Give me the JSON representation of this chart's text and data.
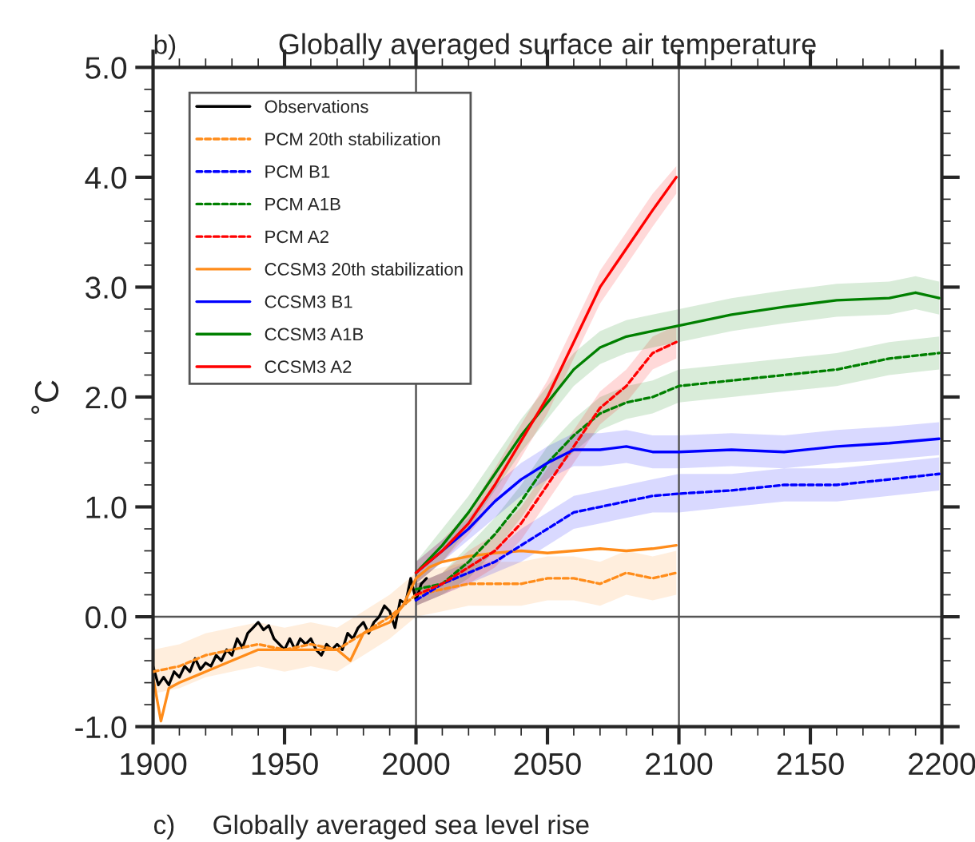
{
  "chart_data": {
    "type": "line",
    "title": "Globally averaged surface air temperature",
    "ylabel": "˚C",
    "annotations": [
      "b)",
      "c)     Globally averaged sea level rise"
    ],
    "xlim": [
      1900,
      2200
    ],
    "xticks": [
      1900,
      1950,
      2000,
      2050,
      2100,
      2150,
      2200
    ],
    "ylim": [
      -1.0,
      5.0
    ],
    "yticks": [
      {
        "value": -1.0,
        "label": "-1.0"
      },
      {
        "value": 0.0,
        "label": "0.0"
      },
      {
        "value": 1.0,
        "label": "1.0"
      },
      {
        "value": 2.0,
        "label": "2.0"
      },
      {
        "value": 3.0,
        "label": "3.0"
      },
      {
        "value": 4.0,
        "label": "4.0"
      },
      {
        "value": 5.0,
        "label": "5.0"
      }
    ],
    "grid": false,
    "legend": "top left",
    "ref_lines": [
      {
        "axis": "x",
        "value": 2000,
        "color": "#555555"
      },
      {
        "axis": "x",
        "value": 2100,
        "color": "#555555"
      },
      {
        "axis": "y",
        "value": 0,
        "color": "#555555"
      }
    ],
    "series": [
      {
        "name": "Observations",
        "color": "#000000",
        "line_style": "solid",
        "x": [
          1900,
          1902,
          1904,
          1906,
          1908,
          1910,
          1912,
          1914,
          1916,
          1918,
          1920,
          1922,
          1924,
          1926,
          1928,
          1930,
          1932,
          1934,
          1936,
          1938,
          1940,
          1942,
          1944,
          1946,
          1948,
          1950,
          1952,
          1954,
          1956,
          1958,
          1960,
          1962,
          1964,
          1966,
          1968,
          1970,
          1972,
          1974,
          1976,
          1978,
          1980,
          1982,
          1984,
          1986,
          1988,
          1990,
          1992,
          1994,
          1996,
          1998,
          2000,
          2002,
          2004
        ],
        "values": [
          -0.45,
          -0.62,
          -0.55,
          -0.62,
          -0.5,
          -0.55,
          -0.45,
          -0.5,
          -0.38,
          -0.48,
          -0.42,
          -0.45,
          -0.35,
          -0.4,
          -0.3,
          -0.35,
          -0.2,
          -0.28,
          -0.15,
          -0.1,
          -0.05,
          -0.12,
          -0.08,
          -0.2,
          -0.25,
          -0.3,
          -0.2,
          -0.3,
          -0.2,
          -0.25,
          -0.2,
          -0.3,
          -0.35,
          -0.25,
          -0.3,
          -0.25,
          -0.3,
          -0.15,
          -0.2,
          -0.1,
          -0.05,
          -0.15,
          -0.05,
          0.0,
          0.1,
          0.05,
          -0.1,
          0.15,
          0.12,
          0.35,
          0.15,
          0.3,
          0.35
        ]
      },
      {
        "name": "PCM 20th stabilization",
        "color": "#ff8c1a",
        "line_style": "dashed",
        "x": [
          1900,
          1910,
          1920,
          1930,
          1940,
          1950,
          1960,
          1970,
          1980,
          1990,
          2000,
          2010,
          2020,
          2030,
          2040,
          2050,
          2060,
          2070,
          2080,
          2090,
          2099
        ],
        "values": [
          -0.5,
          -0.45,
          -0.35,
          -0.3,
          -0.25,
          -0.3,
          -0.25,
          -0.3,
          -0.15,
          0.0,
          0.2,
          0.25,
          0.3,
          0.3,
          0.3,
          0.35,
          0.35,
          0.3,
          0.4,
          0.35,
          0.4
        ],
        "lower": [
          -0.7,
          -0.65,
          -0.55,
          -0.5,
          -0.45,
          -0.5,
          -0.45,
          -0.5,
          -0.35,
          -0.2,
          0.0,
          0.05,
          0.1,
          0.1,
          0.1,
          0.15,
          0.15,
          0.1,
          0.2,
          0.15,
          0.2
        ],
        "upper": [
          -0.3,
          -0.25,
          -0.15,
          -0.1,
          -0.05,
          -0.1,
          -0.05,
          -0.1,
          0.05,
          0.2,
          0.4,
          0.45,
          0.5,
          0.5,
          0.5,
          0.55,
          0.55,
          0.5,
          0.6,
          0.55,
          0.6
        ]
      },
      {
        "name": "PCM B1",
        "color": "#0000ff",
        "line_style": "dashed",
        "x": [
          2000,
          2010,
          2020,
          2030,
          2040,
          2050,
          2060,
          2070,
          2080,
          2090,
          2100,
          2120,
          2140,
          2160,
          2180,
          2199
        ],
        "values": [
          0.15,
          0.3,
          0.4,
          0.5,
          0.65,
          0.8,
          0.95,
          1.0,
          1.05,
          1.1,
          1.12,
          1.15,
          1.2,
          1.2,
          1.25,
          1.3
        ],
        "lower": [
          0.1,
          0.2,
          0.3,
          0.4,
          0.5,
          0.65,
          0.8,
          0.85,
          0.9,
          0.95,
          0.95,
          1.0,
          1.05,
          1.05,
          1.1,
          1.15
        ],
        "upper": [
          0.3,
          0.4,
          0.5,
          0.6,
          0.8,
          0.95,
          1.1,
          1.15,
          1.2,
          1.25,
          1.3,
          1.3,
          1.35,
          1.35,
          1.4,
          1.45
        ]
      },
      {
        "name": "PCM A1B",
        "color": "#008000",
        "line_style": "dashed",
        "x": [
          2000,
          2010,
          2020,
          2030,
          2040,
          2050,
          2060,
          2070,
          2080,
          2090,
          2100,
          2120,
          2140,
          2160,
          2180,
          2199
        ],
        "values": [
          0.25,
          0.3,
          0.5,
          0.75,
          1.05,
          1.4,
          1.65,
          1.85,
          1.95,
          2.0,
          2.1,
          2.15,
          2.2,
          2.25,
          2.35,
          2.4
        ],
        "lower": [
          0.1,
          0.2,
          0.35,
          0.6,
          0.9,
          1.25,
          1.5,
          1.7,
          1.8,
          1.85,
          1.95,
          2.0,
          2.05,
          2.1,
          2.2,
          2.25
        ],
        "upper": [
          0.3,
          0.4,
          0.65,
          0.9,
          1.2,
          1.55,
          1.8,
          2.0,
          2.1,
          2.15,
          2.25,
          2.3,
          2.35,
          2.4,
          2.5,
          2.55
        ]
      },
      {
        "name": "PCM A2",
        "color": "#ff0000",
        "line_style": "dashed",
        "x": [
          2000,
          2010,
          2020,
          2030,
          2040,
          2050,
          2060,
          2070,
          2080,
          2090,
          2099
        ],
        "values": [
          0.2,
          0.3,
          0.45,
          0.6,
          0.85,
          1.2,
          1.55,
          1.9,
          2.1,
          2.4,
          2.5
        ],
        "lower": [
          0.1,
          0.2,
          0.3,
          0.45,
          0.7,
          1.05,
          1.4,
          1.75,
          1.95,
          2.25,
          2.35
        ],
        "upper": [
          0.3,
          0.4,
          0.6,
          0.75,
          1.0,
          1.35,
          1.7,
          2.05,
          2.25,
          2.55,
          2.65
        ]
      },
      {
        "name": "CCSM3 20th stabilization",
        "color": "#ff8c1a",
        "line_style": "solid",
        "x": [
          1900,
          1903,
          1906,
          1910,
          1920,
          1930,
          1940,
          1950,
          1960,
          1970,
          1975,
          1980,
          1990,
          1995,
          2000,
          2005,
          2010,
          2020,
          2030,
          2040,
          2050,
          2060,
          2070,
          2080,
          2090,
          2099
        ],
        "values": [
          -0.55,
          -0.95,
          -0.65,
          -0.6,
          -0.5,
          -0.4,
          -0.3,
          -0.3,
          -0.3,
          -0.3,
          -0.4,
          -0.15,
          -0.05,
          0.1,
          0.35,
          0.45,
          0.5,
          0.55,
          0.58,
          0.6,
          0.58,
          0.6,
          0.62,
          0.6,
          0.62,
          0.65
        ]
      },
      {
        "name": "CCSM3 B1",
        "color": "#0000ff",
        "line_style": "solid",
        "x": [
          2000,
          2010,
          2020,
          2030,
          2040,
          2050,
          2060,
          2070,
          2080,
          2090,
          2100,
          2120,
          2140,
          2160,
          2180,
          2199
        ],
        "values": [
          0.4,
          0.6,
          0.8,
          1.05,
          1.25,
          1.4,
          1.52,
          1.52,
          1.55,
          1.5,
          1.5,
          1.52,
          1.5,
          1.55,
          1.58,
          1.62
        ],
        "lower": [
          0.3,
          0.5,
          0.7,
          0.9,
          1.1,
          1.25,
          1.37,
          1.37,
          1.4,
          1.35,
          1.35,
          1.37,
          1.35,
          1.4,
          1.43,
          1.47
        ],
        "upper": [
          0.5,
          0.7,
          0.9,
          1.2,
          1.4,
          1.55,
          1.67,
          1.67,
          1.7,
          1.65,
          1.65,
          1.67,
          1.65,
          1.7,
          1.73,
          1.77
        ]
      },
      {
        "name": "CCSM3 A1B",
        "color": "#008000",
        "line_style": "solid",
        "x": [
          2000,
          2010,
          2020,
          2030,
          2040,
          2050,
          2060,
          2070,
          2080,
          2090,
          2100,
          2120,
          2140,
          2160,
          2180,
          2190,
          2199
        ],
        "values": [
          0.4,
          0.65,
          0.95,
          1.3,
          1.65,
          1.95,
          2.25,
          2.45,
          2.55,
          2.6,
          2.65,
          2.75,
          2.82,
          2.88,
          2.9,
          2.95,
          2.9
        ],
        "lower": [
          0.3,
          0.5,
          0.8,
          1.15,
          1.5,
          1.8,
          2.1,
          2.3,
          2.4,
          2.45,
          2.5,
          2.6,
          2.67,
          2.73,
          2.75,
          2.8,
          2.75
        ],
        "upper": [
          0.5,
          0.8,
          1.1,
          1.45,
          1.8,
          2.1,
          2.4,
          2.6,
          2.7,
          2.75,
          2.8,
          2.9,
          2.97,
          3.03,
          3.05,
          3.1,
          3.05
        ]
      },
      {
        "name": "CCSM3 A2",
        "color": "#ff0000",
        "line_style": "solid",
        "x": [
          2000,
          2010,
          2020,
          2030,
          2040,
          2050,
          2060,
          2070,
          2080,
          2090,
          2099
        ],
        "values": [
          0.4,
          0.6,
          0.85,
          1.2,
          1.6,
          2.0,
          2.5,
          3.0,
          3.35,
          3.7,
          4.0
        ],
        "lower": [
          0.3,
          0.5,
          0.75,
          1.05,
          1.45,
          1.85,
          2.35,
          2.85,
          3.2,
          3.55,
          3.85
        ],
        "upper": [
          0.5,
          0.7,
          0.95,
          1.35,
          1.75,
          2.15,
          2.65,
          3.15,
          3.5,
          3.85,
          4.1
        ]
      }
    ]
  }
}
